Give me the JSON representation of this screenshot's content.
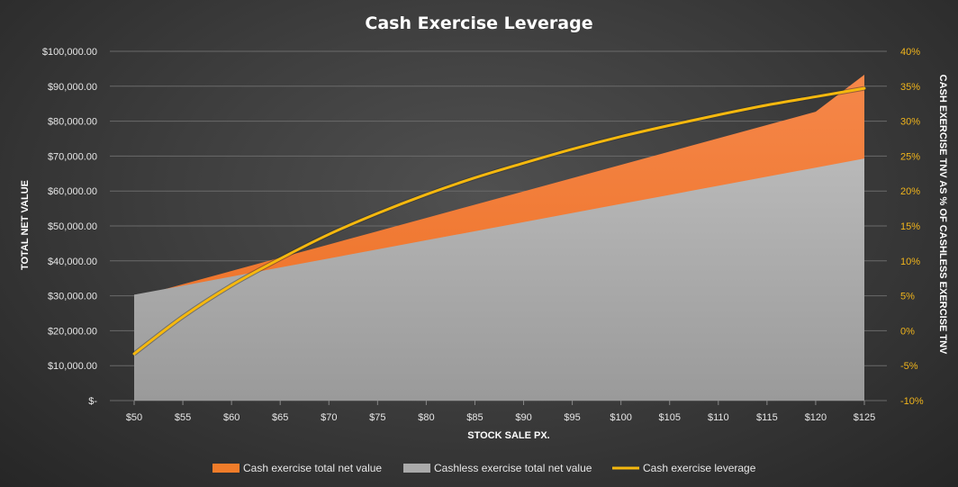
{
  "chart_data": {
    "type": "area",
    "title": "Cash Exercise Leverage",
    "xlabel": "STOCK SALE PX.",
    "ylabel": "TOTAL NET VALUE",
    "y2label": "CASH EXERCISE TNV AS % OF CASHLESS EXERCISE TNV",
    "categories": [
      "$50",
      "$55",
      "$60",
      "$65",
      "$70",
      "$75",
      "$80",
      "$85",
      "$90",
      "$95",
      "$100",
      "$105",
      "$110",
      "$115",
      "$120",
      "$125"
    ],
    "ylim": [
      0,
      100000
    ],
    "y_ticks": [
      0,
      10000,
      20000,
      30000,
      40000,
      50000,
      60000,
      70000,
      80000,
      90000,
      100000
    ],
    "y_tick_labels": [
      "$-",
      "$10,000.00",
      "$20,000.00",
      "$30,000.00",
      "$40,000.00",
      "$50,000.00",
      "$60,000.00",
      "$70,000.00",
      "$80,000.00",
      "$90,000.00",
      "$100,000.00"
    ],
    "y2lim": [
      -10,
      40
    ],
    "y2_ticks": [
      -10,
      -5,
      0,
      5,
      10,
      15,
      20,
      25,
      30,
      35,
      40
    ],
    "y2_tick_labels": [
      "-10%",
      "-5%",
      "0%",
      "5%",
      "10%",
      "15%",
      "20%",
      "25%",
      "30%",
      "35%",
      "40%"
    ],
    "series": [
      {
        "name": "Cash exercise total net value",
        "type": "area",
        "color": "#f07c2a",
        "values": [
          29500,
          33300,
          37100,
          40900,
          44700,
          48500,
          52300,
          56100,
          59900,
          63700,
          67500,
          71300,
          75100,
          78900,
          82700,
          93300
        ]
      },
      {
        "name": "Cashless exercise total net value",
        "type": "area",
        "color": "#aaaaaa",
        "values": [
          30300,
          32900,
          35500,
          38100,
          40700,
          43300,
          45900,
          48500,
          51100,
          53700,
          56300,
          58900,
          61500,
          64100,
          66700,
          69300
        ]
      },
      {
        "name": "Cash exercise leverage",
        "type": "line",
        "axis": "right",
        "color": "#f5b80e",
        "values": [
          -3.3,
          2.0,
          6.5,
          10.3,
          13.8,
          16.8,
          19.5,
          21.9,
          24.0,
          26.0,
          27.8,
          29.4,
          30.9,
          32.3,
          33.5,
          34.7
        ]
      }
    ],
    "legend": {
      "position": "bottom",
      "items": [
        "Cash exercise total net value",
        "Cashless exercise total net value",
        "Cash exercise leverage"
      ]
    }
  }
}
